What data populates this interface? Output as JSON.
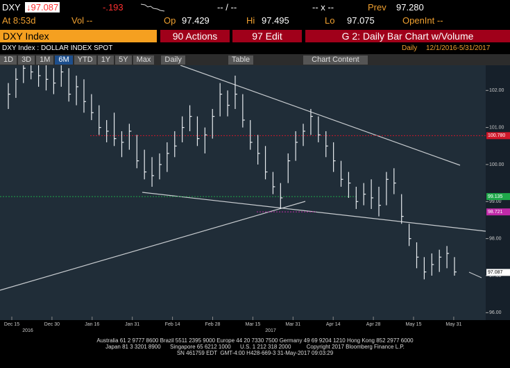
{
  "header": {
    "ticker": "DXY",
    "last": "↓97.087",
    "change": "-.193",
    "time": "At 8:53d",
    "open_label": "Op",
    "open": "97.429",
    "high_label": "Hi",
    "high": "97.495",
    "low_label": "Lo",
    "low": "97.075",
    "prev_label": "Prev",
    "prev": "97.280",
    "vol": "Vol --",
    "openint": "OpenInt --",
    "range_dash": "-- / --",
    "bid_ask": "-- x --"
  },
  "nav": {
    "security": "DXY Index",
    "actions": "90 Actions",
    "edit": "97 Edit",
    "chart_name": "G 2: Daily Bar Chart w/Volume"
  },
  "toolbar": {
    "periods": [
      "1D",
      "3D",
      "1M",
      "6M",
      "YTD",
      "1Y",
      "5Y",
      "Max"
    ],
    "frequency": "Daily",
    "table": "Table",
    "content": "Chart Content"
  },
  "chart_data": {
    "type": "ohlc",
    "title": "DXY Index : DOLLAR INDEX SPOT",
    "frequency": "Daily",
    "subtitle": "12/1/2016-5/31/2017",
    "color": "#e8ecf0",
    "high": [
      102.2,
      102.6,
      102.9,
      102.9,
      102.8,
      102.7,
      102.6,
      102.9,
      102.6,
      102.4,
      102.3,
      101.9,
      101.6,
      101.2,
      101.4,
      100.9,
      101.1,
      100.8,
      100.4,
      100.2,
      100.3,
      100.6,
      100.9,
      101.3,
      101.6,
      101.3,
      101.0,
      101.5,
      102.2,
      102.0,
      102.4,
      101.9,
      101.2,
      100.8,
      100.5,
      99.8,
      99.5,
      100.3,
      100.9,
      101.1,
      101.5,
      101.3,
      100.9,
      100.6,
      100.1,
      99.8,
      99.4,
      99.5,
      99.6,
      99.4,
      99.8,
      99.9,
      99.2,
      98.4,
      97.9,
      97.5,
      97.6,
      97.7,
      97.8,
      97.5
    ],
    "low": [
      101.5,
      101.8,
      102.2,
      102.3,
      102.1,
      102.0,
      101.9,
      102.1,
      101.7,
      101.6,
      101.4,
      101.2,
      100.8,
      100.6,
      100.5,
      100.2,
      100.4,
      99.9,
      99.6,
      99.4,
      99.6,
      99.8,
      100.2,
      100.6,
      100.9,
      100.5,
      100.3,
      100.7,
      101.3,
      101.3,
      101.5,
      101.0,
      100.4,
      100.0,
      99.6,
      99.2,
      98.8,
      99.5,
      100.1,
      100.5,
      100.8,
      100.6,
      100.2,
      99.8,
      99.4,
      99.1,
      98.8,
      98.9,
      98.8,
      98.6,
      98.9,
      99.2,
      98.4,
      97.8,
      97.2,
      96.9,
      97.0,
      97.1,
      97.2,
      97.0
    ],
    "close": [
      101.9,
      102.3,
      102.6,
      102.5,
      102.4,
      102.3,
      102.2,
      102.5,
      101.9,
      102.1,
      101.7,
      101.4,
      101.0,
      100.9,
      100.7,
      100.6,
      100.9,
      100.1,
      99.8,
      99.7,
      100.0,
      100.3,
      100.5,
      101.0,
      101.3,
      100.7,
      100.8,
      101.3,
      101.9,
      101.6,
      101.9,
      101.2,
      100.6,
      100.3,
      99.8,
      99.4,
      99.1,
      100.1,
      100.6,
      100.9,
      101.3,
      100.8,
      100.5,
      100.1,
      99.6,
      99.5,
      99.0,
      99.2,
      99.1,
      98.9,
      99.6,
      99.5,
      98.6,
      98.0,
      97.5,
      97.1,
      97.3,
      97.5,
      97.6,
      97.1
    ],
    "ylim": [
      95.8,
      102.68
    ],
    "yticks": [
      {
        "value": 96,
        "label": "96.00"
      },
      {
        "value": 97,
        "label": "97.00"
      },
      {
        "value": 98,
        "label": "98.00"
      },
      {
        "value": 99,
        "label": "99.00"
      },
      {
        "value": 100,
        "label": "100.00"
      },
      {
        "value": 101,
        "label": "101.00"
      },
      {
        "value": 102,
        "label": "102.00"
      }
    ],
    "xtick_labels": [
      "Dec 15",
      "Dec 30",
      "Jan 16",
      "Jan 31",
      "Feb 14",
      "Feb 28",
      "Mar 15",
      "Mar 31",
      "Apr 14",
      "Apr 28",
      "May 15",
      "May 31"
    ],
    "year_labels": [
      "2016",
      "2017"
    ],
    "price_labels": [
      {
        "value": 100.78,
        "label": "100.780",
        "color": "#d0182a"
      },
      {
        "value": 99.135,
        "label": "99.135",
        "color": "#1fa84a"
      },
      {
        "value": 98.721,
        "label": "98.721",
        "color": "#c02aa8"
      },
      {
        "value": 97.087,
        "label": "97.087",
        "color": "#ffffff"
      }
    ]
  },
  "footer": [
    "Australia 61 2 9777 8600 Brazil 5511 2395 9000 Europe 44 20 7330 7500 Germany 49 69 9204 1210 Hong Kong 852 2977 6000",
    "Japan 81 3 3201 8900      Singapore 65 6212 1000      U.S. 1 212 318 2000          Copyright 2017 Bloomberg Finance L.P.",
    "SN 461759 EDT  GMT-4:00 H428-669-3 31-May-2017 09:03:29"
  ]
}
